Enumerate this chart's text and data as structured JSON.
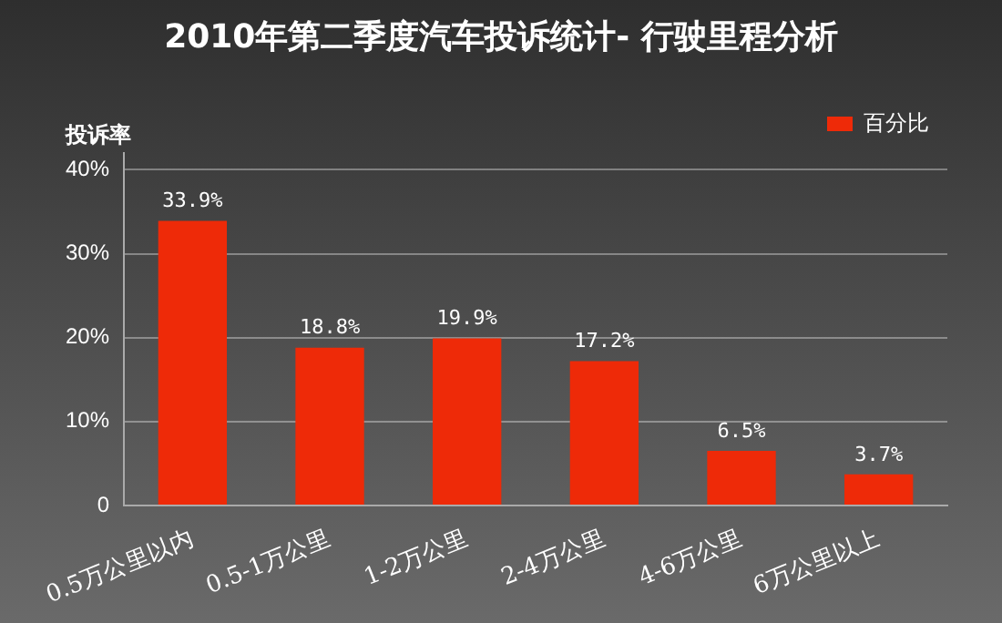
{
  "chart_data": {
    "type": "bar",
    "title": "2010年第二季度汽车投诉统计- 行驶里程分析",
    "ylabel": "投诉率",
    "categories": [
      "0.5万公里以内",
      "0.5-1万公里",
      "1-2万公里",
      "2-4万公里",
      "4-6万公里",
      "6万公里以上"
    ],
    "series": [
      {
        "name": "百分比",
        "color": "#ee2a08",
        "values": [
          33.9,
          18.8,
          19.9,
          17.2,
          6.5,
          3.7
        ],
        "value_labels": [
          "33.9%",
          "18.8%",
          "19.9%",
          "17.2%",
          "6.5%",
          "3.7%"
        ]
      }
    ],
    "ylim": [
      0,
      42
    ],
    "yticks": [
      {
        "value": 0,
        "label": "0"
      },
      {
        "value": 10,
        "label": "10%"
      },
      {
        "value": 20,
        "label": "20%"
      },
      {
        "value": 30,
        "label": "30%"
      },
      {
        "value": 40,
        "label": "40%"
      }
    ],
    "grid": "y",
    "legend": "top right"
  }
}
